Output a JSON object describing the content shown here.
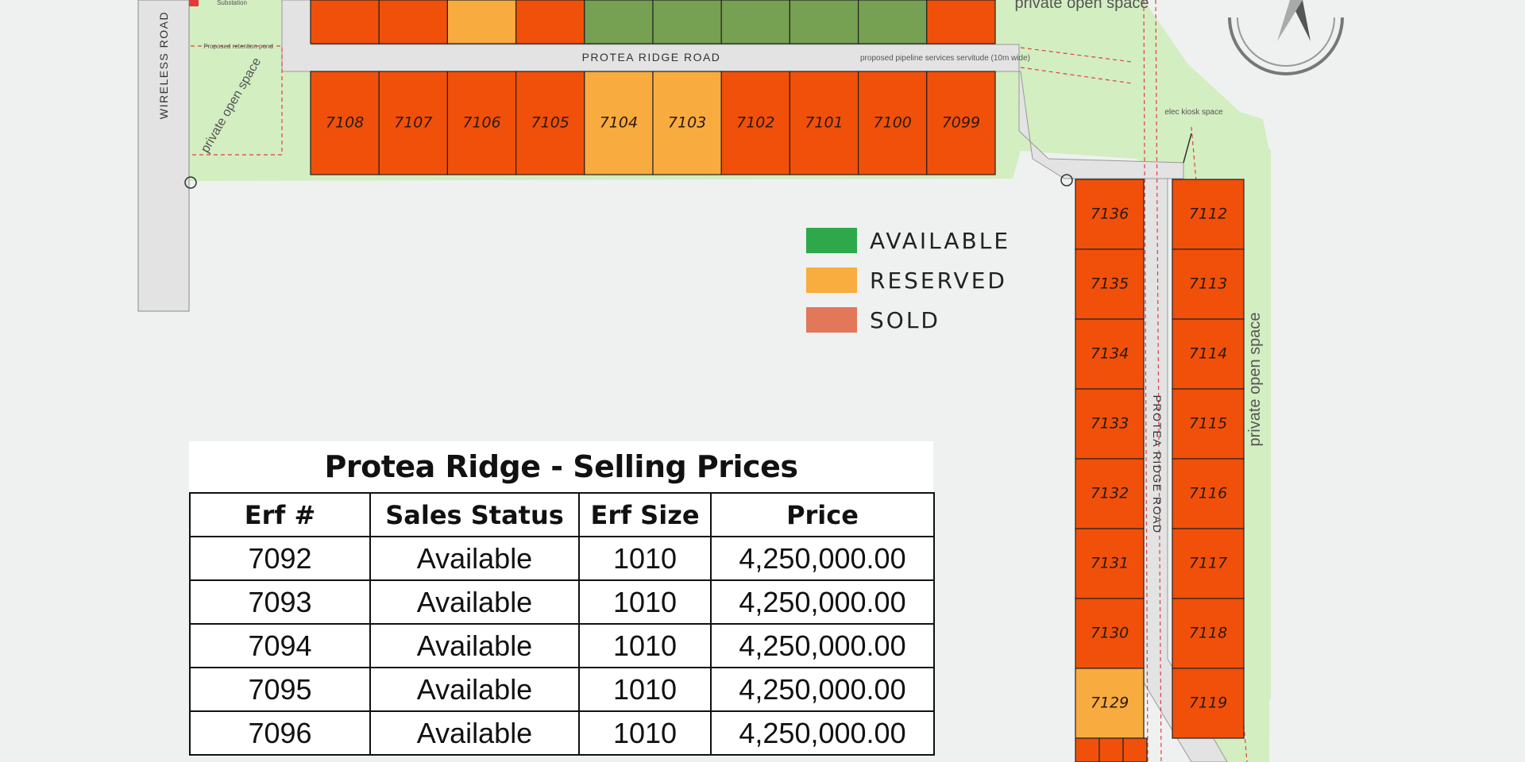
{
  "map": {
    "roads": {
      "wireless_road": "WIRELESS ROAD",
      "protea_ridge_road_top": "PROTEA RIDGE ROAD",
      "protea_ridge_road_side": "PROTEA RIDGE ROAD"
    },
    "labels": {
      "private_open_space_left": "private open space",
      "private_open_space_top": "private open space",
      "private_open_space_right": "private open space",
      "pipeline_note": "proposed pipeline services servitude (10m wide)",
      "elec_kiosk": "elec kiosk space",
      "substation": "Substation",
      "retention_pond": "Proposed retention pond"
    },
    "top_row_erfs": [
      {
        "status": "sold"
      },
      {
        "status": "sold"
      },
      {
        "status": "reserved"
      },
      {
        "status": "sold"
      },
      {
        "status": "available"
      },
      {
        "status": "available"
      },
      {
        "status": "available"
      },
      {
        "status": "available"
      },
      {
        "status": "available"
      },
      {
        "status": "sold"
      }
    ],
    "second_row_erfs": [
      {
        "number": "7108",
        "status": "sold"
      },
      {
        "number": "7107",
        "status": "sold"
      },
      {
        "number": "7106",
        "status": "sold"
      },
      {
        "number": "7105",
        "status": "sold"
      },
      {
        "number": "7104",
        "status": "reserved"
      },
      {
        "number": "7103",
        "status": "reserved"
      },
      {
        "number": "7102",
        "status": "sold"
      },
      {
        "number": "7101",
        "status": "sold"
      },
      {
        "number": "7100",
        "status": "sold"
      },
      {
        "number": "7099",
        "status": "sold"
      }
    ],
    "left_column_erfs": [
      {
        "number": "7136",
        "status": "sold"
      },
      {
        "number": "7135",
        "status": "sold"
      },
      {
        "number": "7134",
        "status": "sold"
      },
      {
        "number": "7133",
        "status": "sold"
      },
      {
        "number": "7132",
        "status": "sold"
      },
      {
        "number": "7131",
        "status": "sold"
      },
      {
        "number": "7130",
        "status": "sold"
      },
      {
        "number": "7129",
        "status": "reserved"
      }
    ],
    "right_column_erfs": [
      {
        "number": "7112",
        "status": "sold"
      },
      {
        "number": "7113",
        "status": "sold"
      },
      {
        "number": "7114",
        "status": "sold"
      },
      {
        "number": "7115",
        "status": "sold"
      },
      {
        "number": "7116",
        "status": "sold"
      },
      {
        "number": "7117",
        "status": "sold"
      },
      {
        "number": "7118",
        "status": "sold"
      },
      {
        "number": "7119",
        "status": "sold"
      }
    ]
  },
  "legend": {
    "items": [
      {
        "label": "AVAILABLE",
        "color": "#2ea84b"
      },
      {
        "label": "RESERVED",
        "color": "#f9ad3e"
      },
      {
        "label": "SOLD",
        "color": "#e2775a"
      }
    ]
  },
  "status_colors": {
    "available": "#76a052",
    "reserved": "#f8ab3f",
    "sold": "#f0500a",
    "open_space": "#d3eec1",
    "road": "#e2e3e2"
  },
  "price_table": {
    "title": "Protea Ridge - Selling Prices",
    "headers": [
      "Erf #",
      "Sales Status",
      "Erf Size",
      "Price"
    ],
    "rows": [
      [
        "7092",
        "Available",
        "1010",
        "4,250,000.00"
      ],
      [
        "7093",
        "Available",
        "1010",
        "4,250,000.00"
      ],
      [
        "7094",
        "Available",
        "1010",
        "4,250,000.00"
      ],
      [
        "7095",
        "Available",
        "1010",
        "4,250,000.00"
      ],
      [
        "7096",
        "Available",
        "1010",
        "4,250,000.00"
      ]
    ]
  }
}
